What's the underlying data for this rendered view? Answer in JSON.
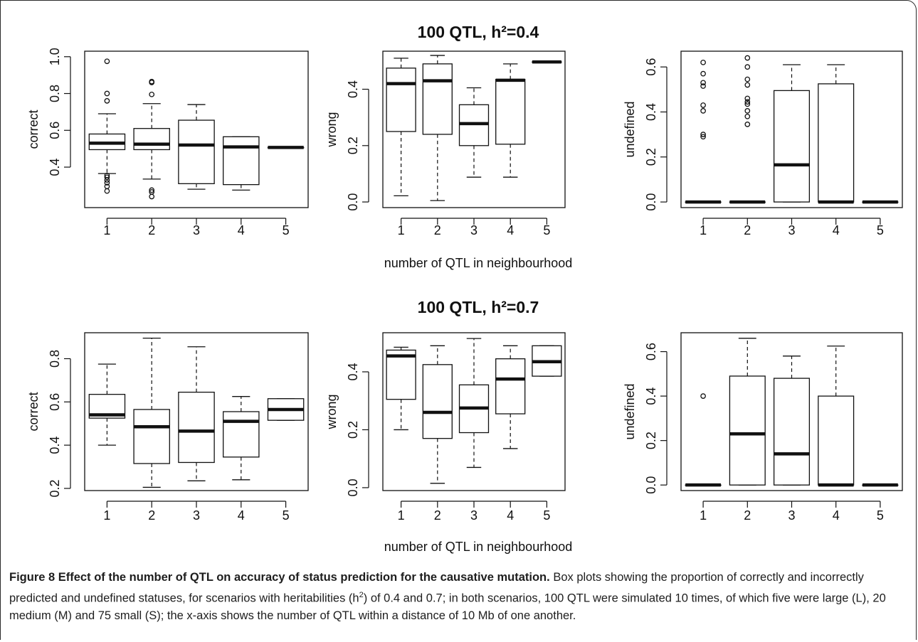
{
  "chart_data": {
    "type": "box",
    "row_titles": [
      "100 QTL, h²=0.4",
      "100 QTL, h²=0.7"
    ],
    "xlabel": "number of QTL in neighbourhood",
    "categories": [
      "1",
      "2",
      "3",
      "4",
      "5"
    ],
    "panels": [
      {
        "row": 0,
        "col": 0,
        "ylabel": "correct",
        "ylim": [
          0.18,
          1.03
        ],
        "yticks": [
          0.4,
          0.6,
          0.8,
          1.0
        ],
        "ytick_labels": [
          "0.4",
          "0.6",
          "0.8",
          "1.0"
        ],
        "boxes": [
          {
            "category": "1",
            "low": 0.365,
            "q1": 0.495,
            "median": 0.53,
            "q3": 0.58,
            "high": 0.69,
            "outliers": [
              0.975,
              0.8,
              0.76,
              0.355,
              0.345,
              0.33,
              0.315,
              0.295,
              0.27
            ]
          },
          {
            "category": "2",
            "low": 0.335,
            "q1": 0.495,
            "median": 0.525,
            "q3": 0.61,
            "high": 0.745,
            "outliers": [
              0.865,
              0.86,
              0.795,
              0.275,
              0.265,
              0.24
            ]
          },
          {
            "category": "3",
            "low": 0.28,
            "q1": 0.31,
            "median": 0.52,
            "q3": 0.655,
            "high": 0.74,
            "outliers": []
          },
          {
            "category": "4",
            "low": 0.275,
            "q1": 0.305,
            "median": 0.51,
            "q3": 0.565,
            "high": 0.565,
            "outliers": []
          },
          {
            "category": "5",
            "low": 0.507,
            "q1": 0.507,
            "median": 0.507,
            "q3": 0.507,
            "high": 0.507,
            "outliers": []
          }
        ]
      },
      {
        "row": 0,
        "col": 1,
        "ylabel": "wrong",
        "ylim": [
          -0.02,
          0.535
        ],
        "yticks": [
          0.0,
          0.2,
          0.4
        ],
        "ytick_labels": [
          "0.0",
          "0.2",
          "0.4"
        ],
        "boxes": [
          {
            "category": "1",
            "low": 0.022,
            "q1": 0.25,
            "median": 0.42,
            "q3": 0.475,
            "high": 0.51,
            "outliers": []
          },
          {
            "category": "2",
            "low": 0.005,
            "q1": 0.24,
            "median": 0.43,
            "q3": 0.49,
            "high": 0.52,
            "outliers": []
          },
          {
            "category": "3",
            "low": 0.088,
            "q1": 0.2,
            "median": 0.278,
            "q3": 0.345,
            "high": 0.405,
            "outliers": []
          },
          {
            "category": "4",
            "low": 0.088,
            "q1": 0.205,
            "median": 0.432,
            "q3": 0.435,
            "high": 0.49,
            "outliers": []
          },
          {
            "category": "5",
            "low": 0.497,
            "q1": 0.497,
            "median": 0.497,
            "q3": 0.497,
            "high": 0.497,
            "outliers": []
          }
        ]
      },
      {
        "row": 0,
        "col": 2,
        "ylabel": "undefined",
        "ylim": [
          -0.025,
          0.67
        ],
        "yticks": [
          0.0,
          0.2,
          0.4,
          0.6
        ],
        "ytick_labels": [
          "0.0",
          "0.2",
          "0.4",
          "0.6"
        ],
        "boxes": [
          {
            "category": "1",
            "low": 0.0,
            "q1": 0.0,
            "median": 0.0,
            "q3": 0.0,
            "high": 0.0,
            "outliers": [
              0.62,
              0.57,
              0.53,
              0.515,
              0.43,
              0.405,
              0.3,
              0.29
            ]
          },
          {
            "category": "2",
            "low": 0.0,
            "q1": 0.0,
            "median": 0.0,
            "q3": 0.0,
            "high": 0.0,
            "outliers": [
              0.64,
              0.6,
              0.545,
              0.52,
              0.46,
              0.445,
              0.435,
              0.405,
              0.38,
              0.345
            ]
          },
          {
            "category": "3",
            "low": 0.0,
            "q1": 0.0,
            "median": 0.165,
            "q3": 0.495,
            "high": 0.61,
            "outliers": []
          },
          {
            "category": "4",
            "low": 0.0,
            "q1": 0.0,
            "median": 0.0,
            "q3": 0.525,
            "high": 0.61,
            "outliers": []
          },
          {
            "category": "5",
            "low": 0.0,
            "q1": 0.0,
            "median": 0.0,
            "q3": 0.0,
            "high": 0.0,
            "outliers": []
          }
        ]
      },
      {
        "row": 1,
        "col": 0,
        "ylabel": "correct",
        "ylim": [
          0.19,
          0.92
        ],
        "yticks": [
          0.2,
          0.4,
          0.6,
          0.8
        ],
        "ytick_labels": [
          "0.2",
          "0.4",
          "0.6",
          "0.8"
        ],
        "boxes": [
          {
            "category": "1",
            "low": 0.4,
            "q1": 0.525,
            "median": 0.54,
            "q3": 0.635,
            "high": 0.775,
            "outliers": []
          },
          {
            "category": "2",
            "low": 0.205,
            "q1": 0.315,
            "median": 0.485,
            "q3": 0.565,
            "high": 0.895,
            "outliers": []
          },
          {
            "category": "3",
            "low": 0.235,
            "q1": 0.32,
            "median": 0.465,
            "q3": 0.645,
            "high": 0.855,
            "outliers": []
          },
          {
            "category": "4",
            "low": 0.24,
            "q1": 0.345,
            "median": 0.51,
            "q3": 0.555,
            "high": 0.625,
            "outliers": []
          },
          {
            "category": "5",
            "low": 0.515,
            "q1": 0.515,
            "median": 0.565,
            "q3": 0.615,
            "high": 0.615,
            "outliers": []
          }
        ]
      },
      {
        "row": 1,
        "col": 1,
        "ylabel": "wrong",
        "ylim": [
          -0.01,
          0.535
        ],
        "yticks": [
          0.0,
          0.2,
          0.4
        ],
        "ytick_labels": [
          "0.0",
          "0.2",
          "0.4"
        ],
        "boxes": [
          {
            "category": "1",
            "low": 0.2,
            "q1": 0.305,
            "median": 0.455,
            "q3": 0.475,
            "high": 0.485,
            "outliers": []
          },
          {
            "category": "2",
            "low": 0.015,
            "q1": 0.17,
            "median": 0.26,
            "q3": 0.425,
            "high": 0.49,
            "outliers": []
          },
          {
            "category": "3",
            "low": 0.07,
            "q1": 0.19,
            "median": 0.275,
            "q3": 0.355,
            "high": 0.515,
            "outliers": []
          },
          {
            "category": "4",
            "low": 0.135,
            "q1": 0.255,
            "median": 0.375,
            "q3": 0.445,
            "high": 0.49,
            "outliers": []
          },
          {
            "category": "5",
            "low": 0.385,
            "q1": 0.385,
            "median": 0.435,
            "q3": 0.49,
            "high": 0.49,
            "outliers": []
          }
        ]
      },
      {
        "row": 1,
        "col": 2,
        "ylabel": "undefined",
        "ylim": [
          -0.025,
          0.685
        ],
        "yticks": [
          0.0,
          0.2,
          0.4,
          0.6
        ],
        "ytick_labels": [
          "0.0",
          "0.2",
          "0.4",
          "0.6"
        ],
        "boxes": [
          {
            "category": "1",
            "low": 0.0,
            "q1": 0.0,
            "median": 0.0,
            "q3": 0.0,
            "high": 0.0,
            "outliers": [
              0.4
            ]
          },
          {
            "category": "2",
            "low": 0.0,
            "q1": 0.0,
            "median": 0.23,
            "q3": 0.49,
            "high": 0.66,
            "outliers": []
          },
          {
            "category": "3",
            "low": 0.0,
            "q1": 0.0,
            "median": 0.14,
            "q3": 0.48,
            "high": 0.58,
            "outliers": []
          },
          {
            "category": "4",
            "low": 0.0,
            "q1": 0.0,
            "median": 0.0,
            "q3": 0.4,
            "high": 0.625,
            "outliers": []
          },
          {
            "category": "5",
            "low": 0.0,
            "q1": 0.0,
            "median": 0.0,
            "q3": 0.0,
            "high": 0.0,
            "outliers": []
          }
        ]
      }
    ]
  },
  "caption": {
    "title": "Figure 8 Effect of the number of QTL on accuracy of status prediction for the causative mutation.",
    "body_before_sup": " Box plots showing the proportion of correctly and incorrectly predicted and undefined statuses, for scenarios with heritabilities (h",
    "sup": "2",
    "body_after_sup": ") of 0.4 and 0.7; in both scenarios, 100 QTL were simulated 10 times, of which five were large (L), 20 medium (M) and 75 small (S); the x-axis shows the number of QTL within a distance of 10 Mb of one another."
  }
}
